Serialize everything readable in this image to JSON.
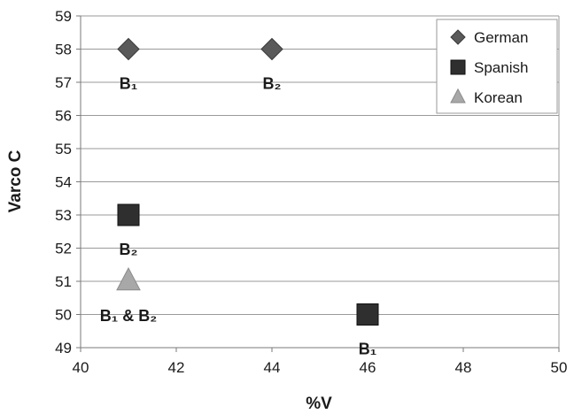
{
  "chart_data": {
    "type": "scatter",
    "xlabel": "%V",
    "ylabel": "Varco C",
    "xlim": [
      40,
      50
    ],
    "ylim": [
      49,
      59
    ],
    "x_ticks": [
      40,
      42,
      44,
      46,
      48,
      50
    ],
    "y_ticks": [
      49,
      50,
      51,
      52,
      53,
      54,
      55,
      56,
      57,
      58,
      59
    ],
    "grid": "horizontal",
    "legend_position": "top-right",
    "series": [
      {
        "name": "German",
        "marker": "diamond",
        "color": "#5a5a5a",
        "points": [
          {
            "x": 41,
            "y": 58,
            "label": "B₁"
          },
          {
            "x": 44,
            "y": 58,
            "label": "B₂"
          }
        ]
      },
      {
        "name": "Spanish",
        "marker": "square",
        "color": "#2f2f2f",
        "points": [
          {
            "x": 41,
            "y": 53,
            "label": "B₂"
          },
          {
            "x": 46,
            "y": 50,
            "label": "B₁"
          }
        ]
      },
      {
        "name": "Korean",
        "marker": "triangle",
        "color": "#a8a8a8",
        "points": [
          {
            "x": 41,
            "y": 51,
            "label": "B₁ & B₂"
          }
        ]
      }
    ]
  }
}
